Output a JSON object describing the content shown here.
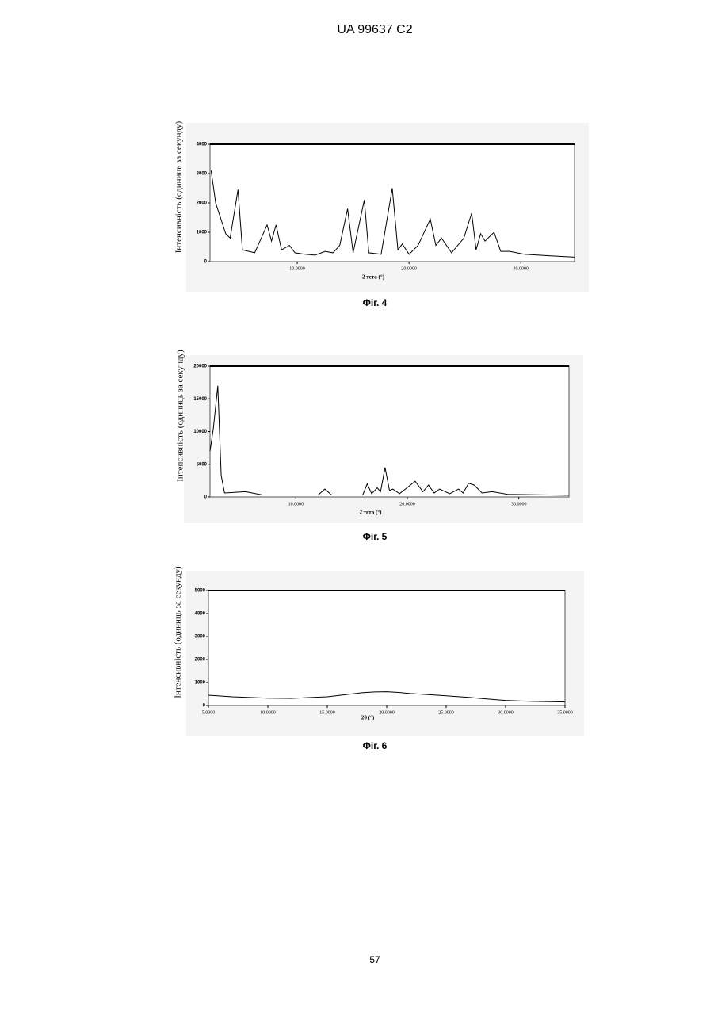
{
  "header": "UA   99637   C2",
  "page_number": "57",
  "chart_data": [
    {
      "type": "line",
      "caption": "Фіг. 4",
      "color": "#000000",
      "grid": false,
      "x_label": "2 тета (°)",
      "y_label": "Інтенсивність (одиниць за секунду)",
      "xlim": [
        2.2,
        34.8
      ],
      "ylim": [
        0,
        4000
      ],
      "xticks": [
        {
          "value": 10,
          "label": "10.0000"
        },
        {
          "value": 20,
          "label": "20.0000"
        },
        {
          "value": 30,
          "label": "30.0000"
        }
      ],
      "yticks": [
        0,
        1000,
        2000,
        3000,
        4000
      ],
      "x": [
        2.3,
        2.7,
        3.6,
        4.0,
        4.7,
        5.1,
        6.2,
        7.3,
        7.7,
        8.1,
        8.6,
        9.3,
        9.8,
        10.7,
        11.6,
        12.5,
        13.2,
        13.8,
        14.5,
        15.0,
        16.0,
        16.4,
        17.5,
        18.5,
        19.0,
        19.4,
        20.0,
        20.8,
        21.9,
        22.4,
        22.9,
        23.8,
        24.9,
        25.6,
        26.0,
        26.4,
        26.8,
        27.6,
        28.2,
        29.0,
        30.3,
        32.5,
        34.8
      ],
      "values": [
        3100,
        2000,
        950,
        800,
        2450,
        400,
        300,
        1250,
        700,
        1250,
        400,
        550,
        300,
        250,
        220,
        350,
        300,
        550,
        1800,
        300,
        2100,
        300,
        250,
        2500,
        400,
        600,
        250,
        550,
        1450,
        550,
        800,
        300,
        800,
        1650,
        400,
        950,
        700,
        1000,
        350,
        350,
        250,
        200,
        150
      ]
    },
    {
      "type": "line",
      "caption": "Фіг. 5",
      "color": "#000000",
      "grid": false,
      "x_label": "2 тета (°)",
      "y_label": "Інтенсивність (одиниць за секунду)",
      "xlim": [
        2.3,
        34.5
      ],
      "ylim": [
        0,
        20000
      ],
      "xticks": [
        {
          "value": 10,
          "label": "10.0000"
        },
        {
          "value": 20,
          "label": "20.0000"
        },
        {
          "value": 30,
          "label": "30.0000"
        }
      ],
      "yticks": [
        0,
        5000,
        10000,
        15000,
        20000
      ],
      "x": [
        2.3,
        2.6,
        3.0,
        3.3,
        3.6,
        5.5,
        7.0,
        12.0,
        12.6,
        13.2,
        16.0,
        16.4,
        16.8,
        17.3,
        17.6,
        18.0,
        18.4,
        18.7,
        19.3,
        20.7,
        21.4,
        21.9,
        22.4,
        22.9,
        23.8,
        24.6,
        25.0,
        25.5,
        26.0,
        26.7,
        27.6,
        29.0,
        34.5
      ],
      "values": [
        7000,
        10500,
        17000,
        3300,
        600,
        800,
        300,
        300,
        1200,
        300,
        300,
        2000,
        500,
        1400,
        800,
        4500,
        1000,
        1200,
        500,
        2400,
        800,
        1800,
        600,
        1200,
        500,
        1200,
        600,
        2100,
        1800,
        600,
        800,
        400,
        250
      ]
    },
    {
      "type": "line",
      "caption": "Фіг. 6",
      "color": "#000000",
      "grid": false,
      "x_label": "2θ  (°)",
      "y_label": "Інтенсивність (одиниць за секунду)",
      "xlim": [
        5,
        35
      ],
      "ylim": [
        0,
        5000
      ],
      "xticks": [
        {
          "value": 5,
          "label": "5.0000"
        },
        {
          "value": 10,
          "label": "10.0000"
        },
        {
          "value": 15,
          "label": "15.0000"
        },
        {
          "value": 20,
          "label": "20.0000"
        },
        {
          "value": 25,
          "label": "25.0000"
        },
        {
          "value": 30,
          "label": "30.0000"
        },
        {
          "value": 35,
          "label": "35.0000"
        }
      ],
      "yticks": [
        0,
        1000,
        2000,
        3000,
        4000,
        5000
      ],
      "x": [
        5,
        7,
        10,
        12,
        15,
        17,
        18,
        19,
        20,
        21,
        22,
        24,
        25,
        27,
        28,
        30,
        32,
        35
      ],
      "values": [
        450,
        380,
        320,
        310,
        380,
        500,
        560,
        590,
        600,
        570,
        520,
        460,
        420,
        350,
        300,
        220,
        180,
        150
      ]
    }
  ]
}
